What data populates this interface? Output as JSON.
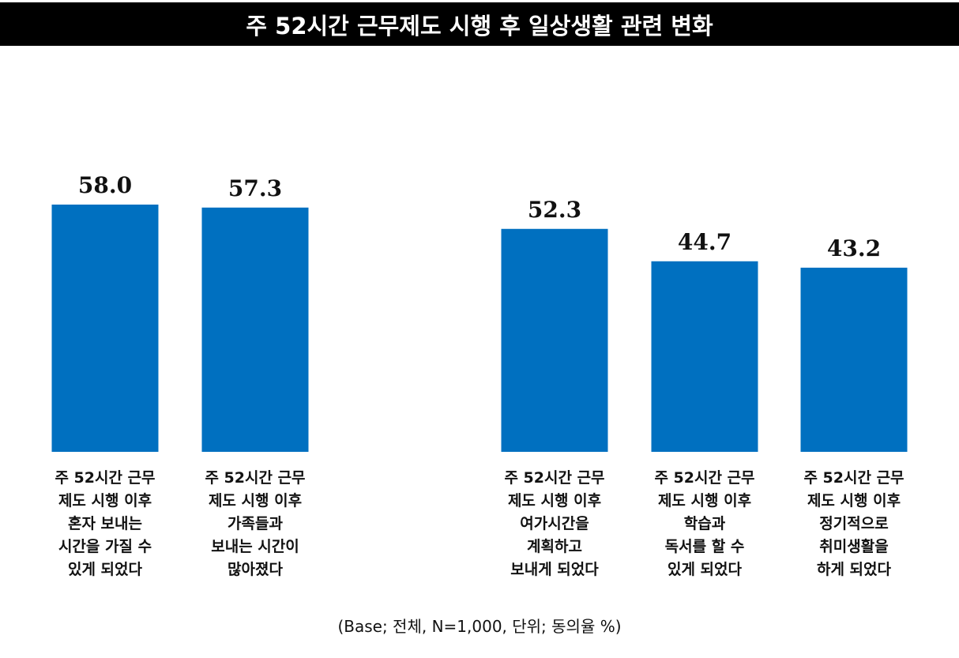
{
  "header": {
    "title": "주 52시간 근무제도 시행 후 일상생활 관련 변화"
  },
  "chart_data": {
    "type": "bar",
    "title": "주 52시간 근무제도 시행 후 일상생활 관련 변화",
    "categories": [
      "주 52시간 근무 제도 시행 이후 혼자 보내는 시간을 가질 수 있게 되었다",
      "주 52시간 근무 제도 시행 이후 가족들과 보내는 시간이 많아졌다",
      "주 52시간 근무 제도 시행 이후 여가시간을 계획하고 보내게 되었다",
      "주 52시간 근무 제도 시행 이후 학습과 독서를 할 수 있게 되었다",
      "주 52시간 근무 제도 시행 이후 정기적으로 취미생활을 하게 되었다"
    ],
    "category_lines": [
      [
        "주 52시간 근무",
        "제도 시행 이후",
        "혼자 보내는",
        "시간을 가질 수",
        "있게 되었다"
      ],
      [
        "주 52시간 근무",
        "제도 시행 이후",
        "가족들과",
        "보내는 시간이",
        "많아졌다"
      ],
      [
        "주 52시간 근무",
        "제도 시행 이후",
        "여가시간을",
        "계획하고",
        "보내게 되었다"
      ],
      [
        "주 52시간 근무",
        "제도 시행 이후",
        "학습과",
        "독서를 할 수",
        "있게 되었다"
      ],
      [
        "주 52시간 근무",
        "제도 시행 이후",
        "정기적으로",
        "취미생활을",
        "하게 되었다"
      ]
    ],
    "values": [
      58.0,
      57.3,
      52.3,
      44.7,
      43.2
    ],
    "value_labels": [
      "58.0",
      "57.3",
      "52.3",
      "44.7",
      "43.2"
    ],
    "ylim": [
      0,
      58.0
    ],
    "grid": false,
    "bar_color": "#0070C0"
  },
  "footnote": "(Base; 전체, N=1,000, 단위; 동의율 %)"
}
